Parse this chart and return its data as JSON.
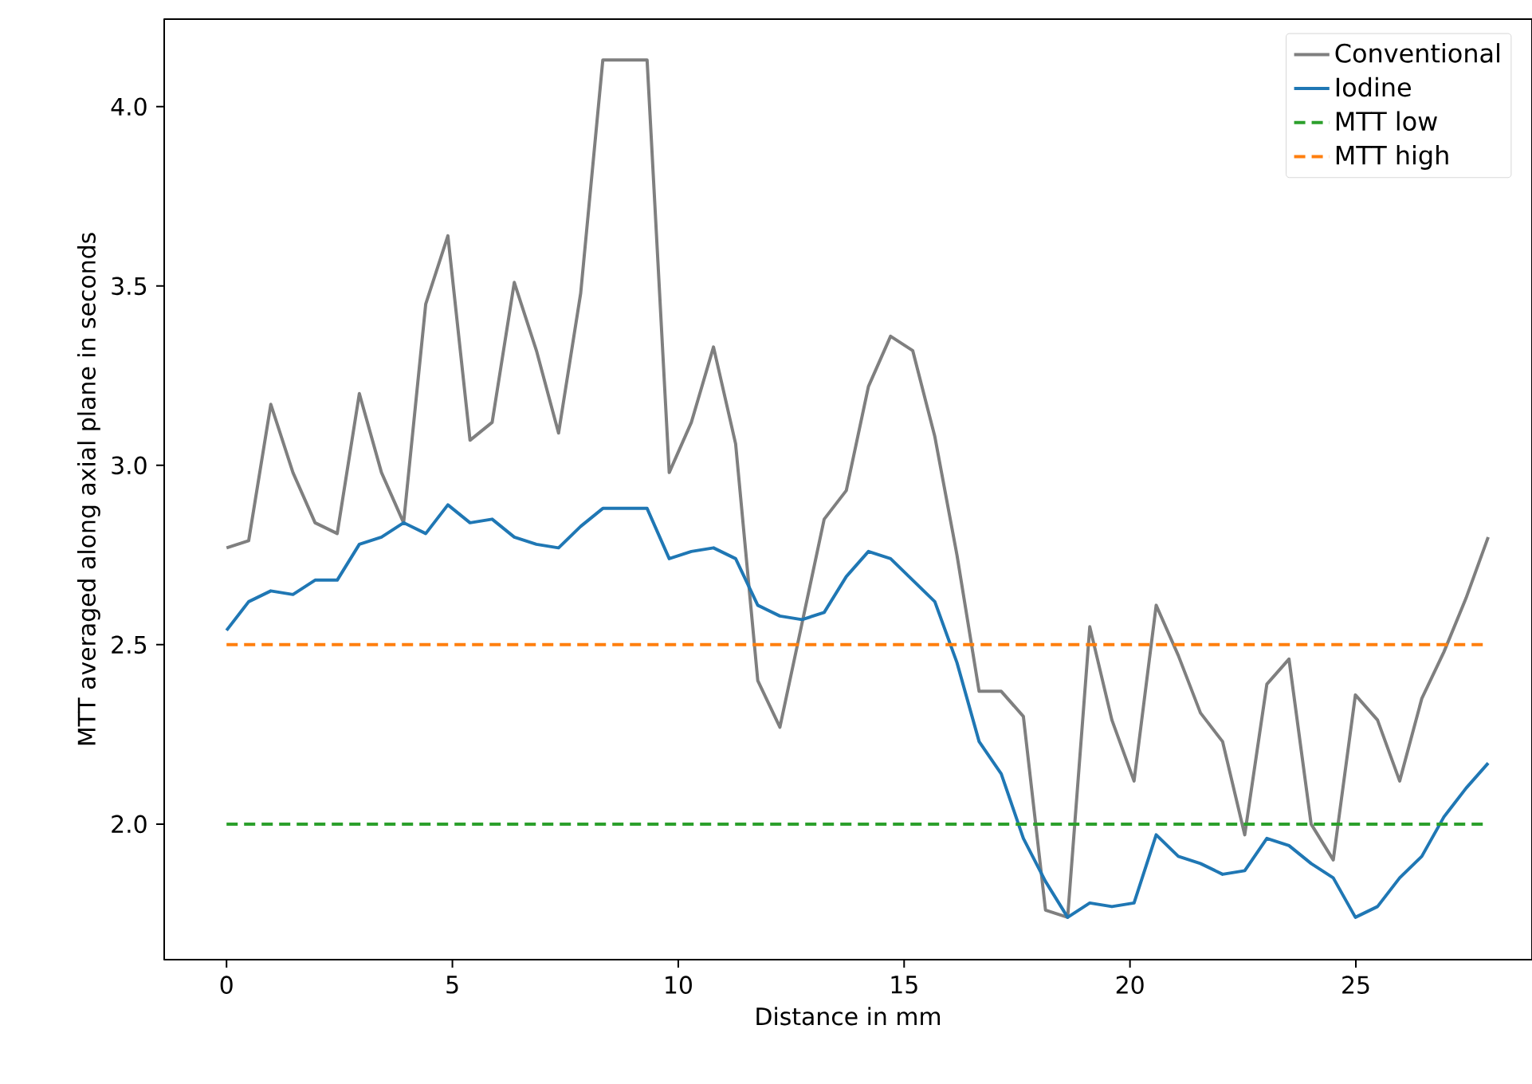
{
  "chart_data": {
    "type": "line",
    "xlabel": "Distance in mm",
    "ylabel": "MTT averaged along axial plane in seconds",
    "x": [
      0,
      0.49,
      0.98,
      1.47,
      1.96,
      2.45,
      2.94,
      3.43,
      3.92,
      4.41,
      4.9,
      5.39,
      5.88,
      6.37,
      6.86,
      7.35,
      7.84,
      8.33,
      8.82,
      9.31,
      9.8,
      10.29,
      10.78,
      11.27,
      11.76,
      12.25,
      12.74,
      13.23,
      13.72,
      14.21,
      14.7,
      15.19,
      15.68,
      16.17,
      16.66,
      17.15,
      17.64,
      18.13,
      18.62,
      19.11,
      19.6,
      20.09,
      20.58,
      21.07,
      21.56,
      22.05,
      22.54,
      23.03,
      23.52,
      24.01,
      24.5,
      24.99,
      25.48,
      25.97,
      26.46,
      26.95,
      27.44,
      27.93
    ],
    "series": [
      {
        "name": "Conventional",
        "color": "#7f7f7f",
        "values": [
          2.77,
          2.79,
          3.17,
          2.98,
          2.84,
          2.81,
          3.2,
          2.98,
          2.84,
          3.45,
          3.64,
          3.07,
          3.12,
          3.51,
          3.32,
          3.09,
          3.48,
          4.13,
          4.13,
          4.13,
          2.98,
          3.12,
          3.33,
          3.06,
          2.4,
          2.27,
          2.56,
          2.85,
          2.93,
          3.22,
          3.36,
          3.32,
          3.08,
          2.75,
          2.37,
          2.37,
          2.3,
          1.76,
          1.74,
          2.55,
          2.29,
          2.12,
          2.61,
          2.47,
          2.31,
          2.23,
          1.97,
          2.39,
          2.46,
          2.0,
          1.9,
          2.36,
          2.29,
          2.12,
          2.35,
          2.48,
          2.63,
          2.8
        ]
      },
      {
        "name": "Iodine",
        "color": "#1f77b4",
        "values": [
          2.54,
          2.62,
          2.65,
          2.64,
          2.68,
          2.68,
          2.78,
          2.8,
          2.84,
          2.81,
          2.89,
          2.84,
          2.85,
          2.8,
          2.78,
          2.77,
          2.83,
          2.88,
          2.88,
          2.88,
          2.74,
          2.76,
          2.77,
          2.74,
          2.61,
          2.58,
          2.57,
          2.59,
          2.69,
          2.76,
          2.74,
          2.68,
          2.62,
          2.45,
          2.23,
          2.14,
          1.96,
          1.84,
          1.74,
          1.78,
          1.77,
          1.78,
          1.97,
          1.91,
          1.89,
          1.86,
          1.87,
          1.96,
          1.94,
          1.89,
          1.85,
          1.74,
          1.77,
          1.85,
          1.91,
          2.02,
          2.1,
          2.17
        ]
      }
    ],
    "ref_lines": [
      {
        "axis": "y",
        "value": 2.0,
        "label": "MTT low",
        "color": "#2ca02c",
        "line_style": "dashed"
      },
      {
        "axis": "y",
        "value": 2.5,
        "label": "MTT high",
        "color": "#ff7f0e",
        "line_style": "dashed"
      }
    ],
    "xlim": [
      -1.38,
      28.9
    ],
    "ylim": [
      1.622,
      4.244
    ],
    "xticks": [
      0,
      5,
      10,
      15,
      20,
      25
    ],
    "yticks": [
      {
        "value": 2.0,
        "label": "2.0"
      },
      {
        "value": 2.5,
        "label": "2.5"
      },
      {
        "value": 3.0,
        "label": "3.0"
      },
      {
        "value": 3.5,
        "label": "3.5"
      },
      {
        "value": 4.0,
        "label": "4.0"
      }
    ],
    "grid": false,
    "legend": "top right",
    "line_style": "solid",
    "marker": "none"
  }
}
